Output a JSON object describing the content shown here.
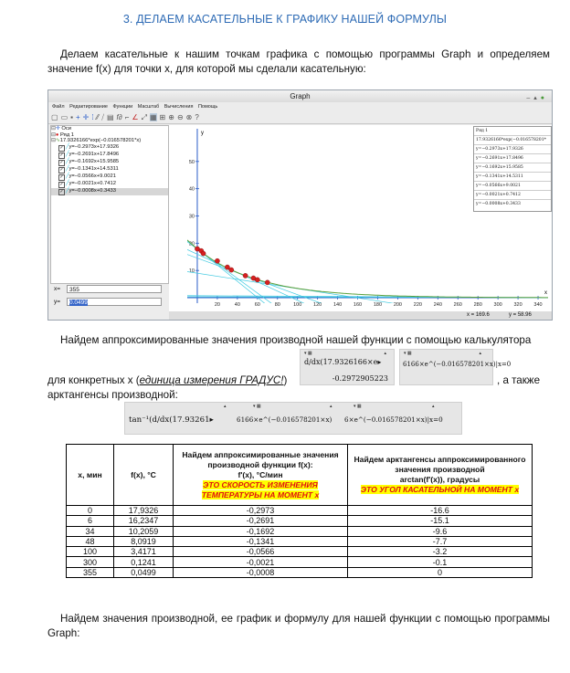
{
  "heading": "3. ДЕЛАЕМ КАСАТЕЛЬНЫЕ К ГРАФИКУ НАШЕЙ ФОРМУЛЫ",
  "para1": "Делаем касательные к нашим точкам графика с помощью программы  Graph  и определяем значение f(x) для точки x, для которой мы сделали касательную:",
  "graph_window": {
    "title": "Graph",
    "menu": [
      "Файл",
      "Редактирование",
      "Функции",
      "Масштаб",
      "Вычисления",
      "Помощь"
    ],
    "function_list": [
      "Оси",
      "Ряд 1",
      "17.9326166*exp(−0.016578201*x)",
      "y=−0.2973x+17.9326",
      "y=−0.2691x+17.8496",
      "y=−0.1692x+15.9585",
      "y=−0.1341x+14.5311",
      "y=−0.0566x+9.0021",
      "y=−0.0021x+0.7412",
      "y=−0.0008x+0.3433"
    ],
    "x_label": "x=",
    "x_value": "355",
    "y_label": "y=",
    "y_value": "0.0499",
    "status_x": "x = 169.6",
    "status_y": "y = 58.96",
    "legend": [
      "Ряд 1",
      "17.9326166*exp(−0.016578201*",
      "y=−0.2973x+17.9326",
      "y=−0.2691x+17.8496",
      "y=−0.1692x+15.9585",
      "y=−0.1341x+14.5311",
      "y=−0.0566x+9.0021",
      "y=−0.0021x+0.7412",
      "y=−0.0008x+0.3433"
    ],
    "axis_x_label": "x",
    "axis_y_label": "y"
  },
  "chart_data": {
    "type": "scatter",
    "xlim": [
      -10,
      350
    ],
    "ylim": [
      -2,
      62
    ],
    "x_ticks": [
      20,
      40,
      60,
      80,
      100,
      120,
      140,
      160,
      180,
      200,
      220,
      240,
      260,
      280,
      300,
      320,
      340
    ],
    "y_ticks": [
      10,
      20,
      30,
      40,
      50
    ],
    "curve": {
      "a": 17.9326166,
      "k": -0.016578201,
      "color": "#5aa03c"
    },
    "points": [
      {
        "x": 0,
        "y": 17.9326
      },
      {
        "x": 4,
        "y": 17.2
      },
      {
        "x": 6,
        "y": 16.2347
      },
      {
        "x": 20,
        "y": 13.5
      },
      {
        "x": 30,
        "y": 11.2
      },
      {
        "x": 34,
        "y": 10.2059
      },
      {
        "x": 48,
        "y": 8.0919
      },
      {
        "x": 56,
        "y": 7.2
      },
      {
        "x": 60,
        "y": 6.6
      },
      {
        "x": 70,
        "y": 5.6
      }
    ],
    "tangents": [
      {
        "m": -0.2973,
        "b": 17.9326
      },
      {
        "m": -0.2691,
        "b": 17.8496
      },
      {
        "m": -0.1692,
        "b": 15.9585
      },
      {
        "m": -0.1341,
        "b": 14.5311
      },
      {
        "m": -0.0566,
        "b": 9.0021
      },
      {
        "m": -0.0021,
        "b": 0.7412
      },
      {
        "m": -0.0008,
        "b": 0.3433
      }
    ],
    "tangent_color": "#3ec9e0",
    "point_color": "#d62020"
  },
  "para2": "Найдем аппроксимированные значения производной нашей функции с помощью калькулятора",
  "para3_before": "для конкретных x (",
  "para3_italic": "единица измерения ГРАДУС!",
  "para3_after": ")",
  "para3_tail": ", а также",
  "para3_line2": "арктангенсы производной:",
  "calc1_top": "d/dx(17.9326166×e▸",
  "calc1_result": "-0.2972905223",
  "calc2_expr": "6166×e^(−0.016578201×x)|x=0",
  "calc3_a": "tan⁻¹(d/dx(17.93261▸",
  "calc3_b": "6166×e^(−0.016578201×x)",
  "calc3_c": "6×e^(−0.016578201×x)|x=0",
  "table": {
    "headers": {
      "x": "x, мин",
      "f": "f(x), °C",
      "deriv_line1": "Найдем аппроксимированные значения производной функции f(x):",
      "deriv_line2": "f'(x), °C/мин",
      "deriv_hl": "ЭТО СКОРОСТЬ ИЗМЕНЕНИЯ ТЕМПЕРАТУРЫ НА МОМЕНТ x",
      "atan_line1": "Найдем арктангенсы аппроксимированного значения производной",
      "atan_line2": "arctan(f'(x)), градусы",
      "atan_hl": "ЭТО УГОЛ КАСАТЕЛЬНОЙ НА МОМЕНТ x"
    },
    "rows": [
      [
        "0",
        "17,9326",
        "-0,2973",
        "-16.6"
      ],
      [
        "6",
        "16,2347",
        "-0,2691",
        "-15.1"
      ],
      [
        "34",
        "10,2059",
        "-0,1692",
        "-9.6"
      ],
      [
        "48",
        "8,0919",
        "-0,1341",
        "-7.7"
      ],
      [
        "100",
        "3,4171",
        "-0,0566",
        "-3.2"
      ],
      [
        "300",
        "0,1241",
        "-0,0021",
        "-0.1"
      ],
      [
        "355",
        "0,0499",
        "-0,0008",
        "0"
      ]
    ]
  },
  "para4": "Найдем значения производной, ее график и формулу для нашей функции с помощью программы Graph:"
}
